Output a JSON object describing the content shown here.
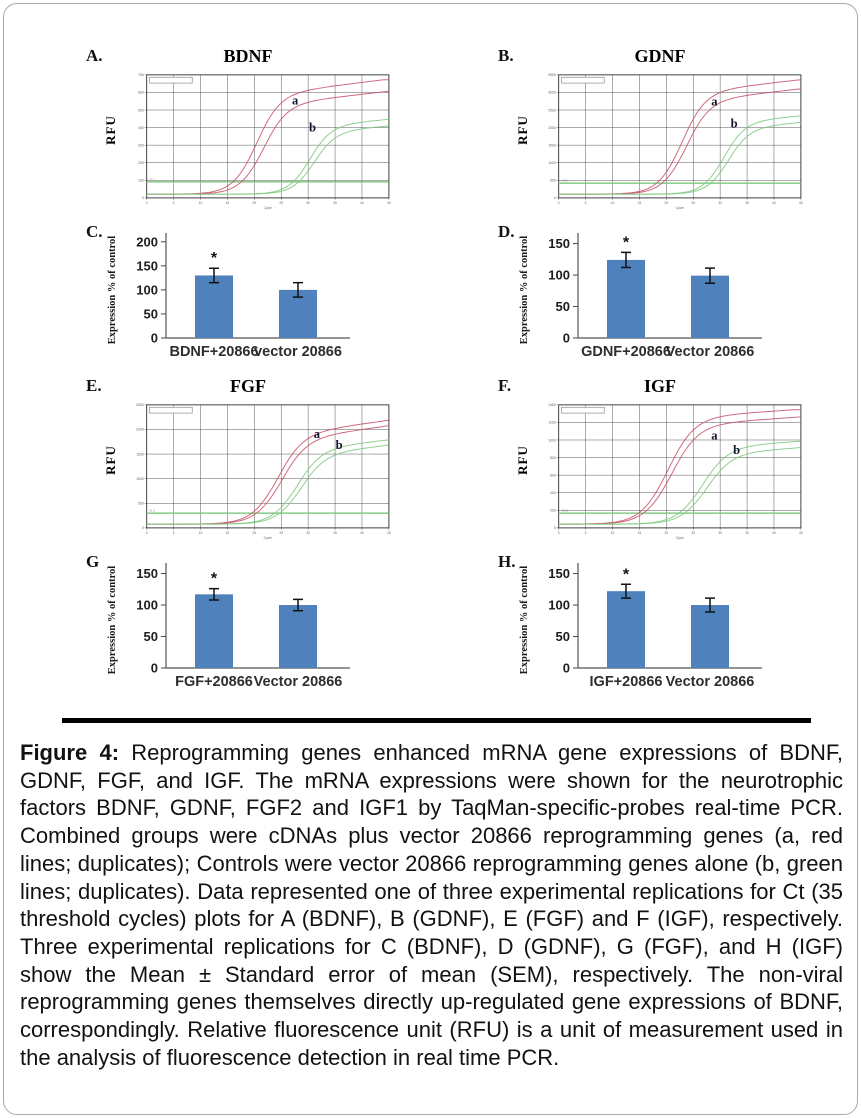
{
  "figure": {
    "caption_label": "Figure 4:",
    "caption_text": " Reprogramming genes enhanced mRNA gene expressions of BDNF, GDNF, FGF, and IGF. The mRNA expressions were shown for the neurotrophic factors BDNF, GDNF, FGF2 and IGF1 by TaqMan-specific-probes real-time PCR. Combined groups were cDNAs plus vector 20866 reprogramming genes (a, red lines; duplicates); Controls were vector 20866 reprogramming genes alone (b, green lines; duplicates). Data represented one of three experimental replications for Ct (35 threshold cycles) plots for A (BDNF), B (GDNF), E (FGF) and F (IGF), respectively. Three experimental replications for C (BDNF), D (GDNF), G (FGF), and H (IGF) show the Mean ± Standard error of mean (SEM), respectively. The non-viral reprogramming genes themselves directly up-regulated gene expressions of BDNF, correspondingly. Relative fluorescence unit (RFU) is a unit of measurement used in the analysis of fluorescence detection in real time PCR."
  },
  "style": {
    "bar_color": "#4f81bd",
    "red": "#c9556b",
    "green": "#7fca7f",
    "threshold_green": "#8fd08f",
    "grid": "#3f3f3f",
    "curve_label_color": "#15152e"
  },
  "chart_data": [
    {
      "id": "A",
      "type": "line",
      "letter": "A.",
      "title": "BDNF",
      "ylabel": "RFU",
      "xlabel": "Cycle",
      "x_ticks": [
        0,
        5,
        10,
        15,
        20,
        25,
        30,
        35,
        40,
        45
      ],
      "y_ticks": [
        "700",
        "600",
        "500",
        "400",
        "300",
        "200",
        "100",
        "0"
      ],
      "threshold": 0.13,
      "threshold_label": "85.3",
      "series": [
        {
          "name": "a combined duplicate 1",
          "color": "red",
          "ct": 20.3,
          "slope": 2.2,
          "plateau": 0.8,
          "drift": 0.0055
        },
        {
          "name": "a combined duplicate 2",
          "color": "red",
          "ct": 21.6,
          "slope": 2.2,
          "plateau": 0.72,
          "drift": 0.005
        },
        {
          "name": "b control duplicate 1",
          "color": "green",
          "ct": 30.2,
          "slope": 2.0,
          "plateau": 0.55,
          "drift": 0.004
        },
        {
          "name": "b control duplicate 2",
          "color": "green",
          "ct": 31.0,
          "slope": 2.0,
          "plateau": 0.5,
          "drift": 0.004
        }
      ],
      "curve_labels": [
        {
          "text": "a",
          "x": 0.6,
          "y": 0.24
        },
        {
          "text": "b",
          "x": 0.67,
          "y": 0.46
        }
      ]
    },
    {
      "id": "B",
      "type": "line",
      "letter": "B.",
      "title": "GDNF",
      "ylabel": "RFU",
      "xlabel": "Cycle",
      "x_ticks": [
        0,
        5,
        10,
        15,
        20,
        25,
        30,
        35,
        40,
        45
      ],
      "y_ticks": [
        "3500",
        "3000",
        "2500",
        "2000",
        "1500",
        "1000",
        "500",
        "0"
      ],
      "threshold": 0.12,
      "threshold_label": "145.1",
      "series": [
        {
          "name": "a combined duplicate 1",
          "color": "red",
          "ct": 22.8,
          "slope": 2.2,
          "plateau": 0.82,
          "drift": 0.005
        },
        {
          "name": "a combined duplicate 2",
          "color": "red",
          "ct": 23.6,
          "slope": 2.2,
          "plateau": 0.75,
          "drift": 0.005
        },
        {
          "name": "b control duplicate 1",
          "color": "green",
          "ct": 30.6,
          "slope": 2.0,
          "plateau": 0.58,
          "drift": 0.004
        },
        {
          "name": "b control duplicate 2",
          "color": "green",
          "ct": 31.4,
          "slope": 2.0,
          "plateau": 0.53,
          "drift": 0.004
        }
      ],
      "curve_labels": [
        {
          "text": "a",
          "x": 0.63,
          "y": 0.25
        },
        {
          "text": "b",
          "x": 0.71,
          "y": 0.43
        }
      ]
    },
    {
      "id": "C",
      "type": "bar",
      "letter": "C.",
      "ylabel": "Expression % of control",
      "ymax": 212,
      "y_ticks": [
        0,
        50,
        100,
        150,
        200
      ],
      "bars": [
        {
          "label": "BDNF+20866",
          "value": 130,
          "error": 15,
          "sig": "*"
        },
        {
          "label": "vector 20866",
          "value": 100,
          "error": 15,
          "sig": ""
        }
      ]
    },
    {
      "id": "D",
      "type": "bar",
      "letter": "D.",
      "ylabel": "Expression % of control",
      "ymax": 162,
      "y_ticks": [
        0,
        50,
        100,
        150
      ],
      "bars": [
        {
          "label": "GDNF+20866",
          "value": 124,
          "error": 12,
          "sig": "*"
        },
        {
          "label": "Vector 20866",
          "value": 99,
          "error": 12,
          "sig": ""
        }
      ]
    },
    {
      "id": "E",
      "type": "line",
      "letter": "E.",
      "title": "FGF",
      "ylabel": "RFU",
      "xlabel": "Cycle",
      "x_ticks": [
        0,
        5,
        10,
        15,
        20,
        25,
        30,
        35,
        40,
        45
      ],
      "y_ticks": [
        "2500",
        "2000",
        "1500",
        "1000",
        "500",
        "0"
      ],
      "threshold": 0.12,
      "threshold_label": "81.3",
      "series": [
        {
          "name": "a combined duplicate 1",
          "color": "red",
          "ct": 24.2,
          "slope": 2.4,
          "plateau": 0.72,
          "drift": 0.006
        },
        {
          "name": "a combined duplicate 2",
          "color": "red",
          "ct": 24.9,
          "slope": 2.4,
          "plateau": 0.68,
          "drift": 0.006
        },
        {
          "name": "b control duplicate 1",
          "color": "green",
          "ct": 27.8,
          "slope": 2.3,
          "plateau": 0.6,
          "drift": 0.005
        },
        {
          "name": "b control duplicate 2",
          "color": "green",
          "ct": 28.5,
          "slope": 2.3,
          "plateau": 0.56,
          "drift": 0.005
        }
      ],
      "curve_labels": [
        {
          "text": "a",
          "x": 0.69,
          "y": 0.27
        },
        {
          "text": "b",
          "x": 0.78,
          "y": 0.36
        }
      ]
    },
    {
      "id": "F",
      "type": "line",
      "letter": "F.",
      "title": "IGF",
      "ylabel": "RFU",
      "xlabel": "Cycle",
      "x_ticks": [
        0,
        5,
        10,
        15,
        20,
        25,
        30,
        35,
        40,
        45
      ],
      "y_ticks": [
        "1400",
        "1200",
        "1000",
        "800",
        "600",
        "400",
        "200",
        "0"
      ],
      "threshold": 0.12,
      "threshold_label": "138.2",
      "series": [
        {
          "name": "a combined duplicate 1",
          "color": "red",
          "ct": 20.2,
          "slope": 2.5,
          "plateau": 0.86,
          "drift": 0.003
        },
        {
          "name": "a combined duplicate 2",
          "color": "red",
          "ct": 20.9,
          "slope": 2.5,
          "plateau": 0.8,
          "drift": 0.003
        },
        {
          "name": "b control duplicate 1",
          "color": "green",
          "ct": 26.6,
          "slope": 2.4,
          "plateau": 0.62,
          "drift": 0.003
        },
        {
          "name": "b control duplicate 2",
          "color": "green",
          "ct": 27.4,
          "slope": 2.4,
          "plateau": 0.57,
          "drift": 0.003
        }
      ],
      "curve_labels": [
        {
          "text": "a",
          "x": 0.63,
          "y": 0.28
        },
        {
          "text": "b",
          "x": 0.72,
          "y": 0.4
        }
      ]
    },
    {
      "id": "G",
      "type": "bar",
      "letter": "G",
      "ylabel": "Expression % of control",
      "ymax": 162,
      "y_ticks": [
        0,
        50,
        100,
        150
      ],
      "bars": [
        {
          "label": "FGF+20866",
          "value": 117,
          "error": 9,
          "sig": "*"
        },
        {
          "label": "Vector 20866",
          "value": 100,
          "error": 9,
          "sig": ""
        }
      ]
    },
    {
      "id": "H",
      "type": "bar",
      "letter": "H.",
      "ylabel": "Expression % of control",
      "ymax": 162,
      "y_ticks": [
        0,
        50,
        100,
        150
      ],
      "bars": [
        {
          "label": "IGF+20866",
          "value": 122,
          "error": 11,
          "sig": "*"
        },
        {
          "label": "Vector 20866",
          "value": 100,
          "error": 11,
          "sig": ""
        }
      ]
    }
  ]
}
